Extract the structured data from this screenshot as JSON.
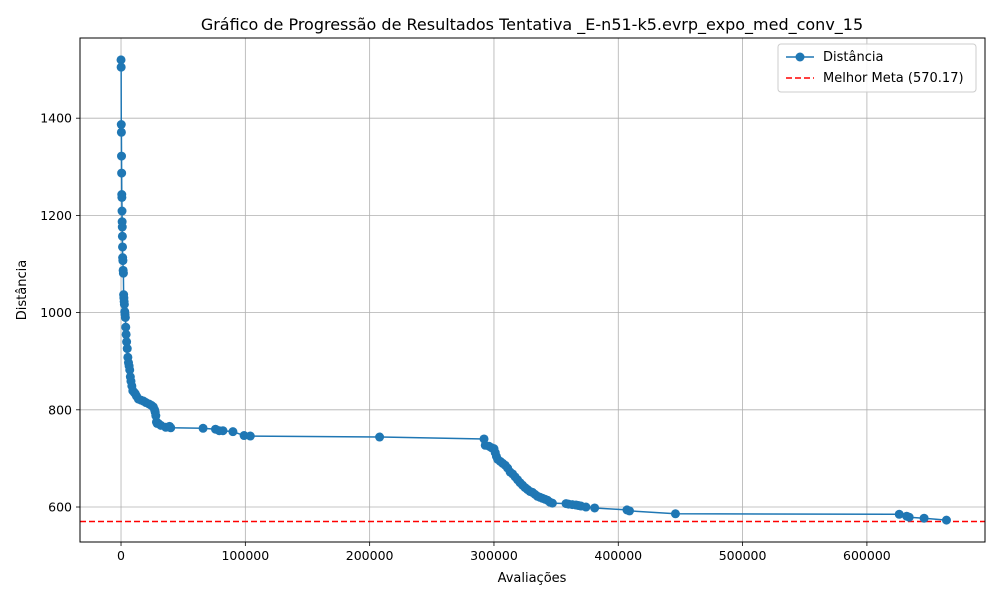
{
  "chart_data": {
    "type": "line",
    "title": "Gráfico de Progressão de Resultados Tentativa _E-n51-k5.evrp_expo_med_conv_15",
    "xlabel": "Avaliações",
    "ylabel": "Distância",
    "xlim": [
      -33000,
      695000
    ],
    "ylim": [
      528,
      1565
    ],
    "xticks": [
      0,
      100000,
      200000,
      300000,
      400000,
      500000,
      600000
    ],
    "yticks": [
      600,
      800,
      1000,
      1200,
      1400
    ],
    "grid": true,
    "legend_position": "top-right",
    "colors": {
      "series": "#1f77b4",
      "reference": "#ff0000",
      "grid": "#b0b0b0"
    },
    "series": [
      {
        "name": "Distância",
        "marker": "circle",
        "x": [
          0,
          100,
          200,
          300,
          400,
          500,
          600,
          700,
          800,
          900,
          1000,
          1100,
          1200,
          1300,
          1500,
          1700,
          1900,
          2100,
          2300,
          2500,
          2700,
          3000,
          3200,
          3500,
          3800,
          4100,
          4500,
          5000,
          5500,
          6000,
          6500,
          7000,
          7500,
          8000,
          8700,
          9500,
          10500,
          11500,
          12500,
          14000,
          16000,
          18000,
          20000,
          22500,
          24500,
          26000,
          27000,
          27500,
          28000,
          28500,
          29000,
          30000,
          32000,
          36000,
          39000,
          40000,
          66000,
          76000,
          79000,
          82000,
          90000,
          99000,
          104000,
          208000,
          292000,
          293000,
          296000,
          298000,
          300000,
          301000,
          302000,
          303000,
          305000,
          307000,
          309000,
          311000,
          313000,
          315000,
          317000,
          319000,
          321000,
          323000,
          325000,
          327000,
          329000,
          331000,
          333000,
          335000,
          337000,
          339000,
          341000,
          343000,
          345000,
          347000,
          358000,
          360000,
          363000,
          366000,
          368000,
          370000,
          374000,
          381000,
          407000,
          409000,
          446000,
          626000,
          632000,
          634000,
          646000,
          664000
        ],
        "y": [
          1520,
          1505,
          1387,
          1371,
          1322,
          1287,
          1243,
          1237,
          1209,
          1187,
          1176,
          1157,
          1135,
          1113,
          1107,
          1087,
          1081,
          1037,
          1030,
          1023,
          1017,
          1002,
          996,
          990,
          970,
          955,
          940,
          926,
          908,
          897,
          890,
          882,
          868,
          859,
          849,
          839,
          836,
          833,
          828,
          822,
          820,
          818,
          815,
          812,
          809,
          806,
          800,
          795,
          788,
          775,
          772,
          772,
          768,
          764,
          766,
          763,
          762,
          760,
          757,
          757,
          755,
          747,
          746,
          744,
          740,
          727,
          725,
          722,
          720,
          712,
          704,
          698,
          694,
          690,
          686,
          680,
          672,
          668,
          662,
          656,
          650,
          645,
          640,
          636,
          632,
          630,
          626,
          622,
          620,
          618,
          616,
          614,
          610,
          608,
          607,
          606,
          605,
          604,
          603,
          602,
          600,
          598,
          594,
          592,
          586,
          585,
          581,
          579,
          577,
          573
        ]
      }
    ],
    "reference_line": {
      "name": "Melhor Meta (570.17)",
      "y": 570.17,
      "style": "dashed"
    }
  }
}
